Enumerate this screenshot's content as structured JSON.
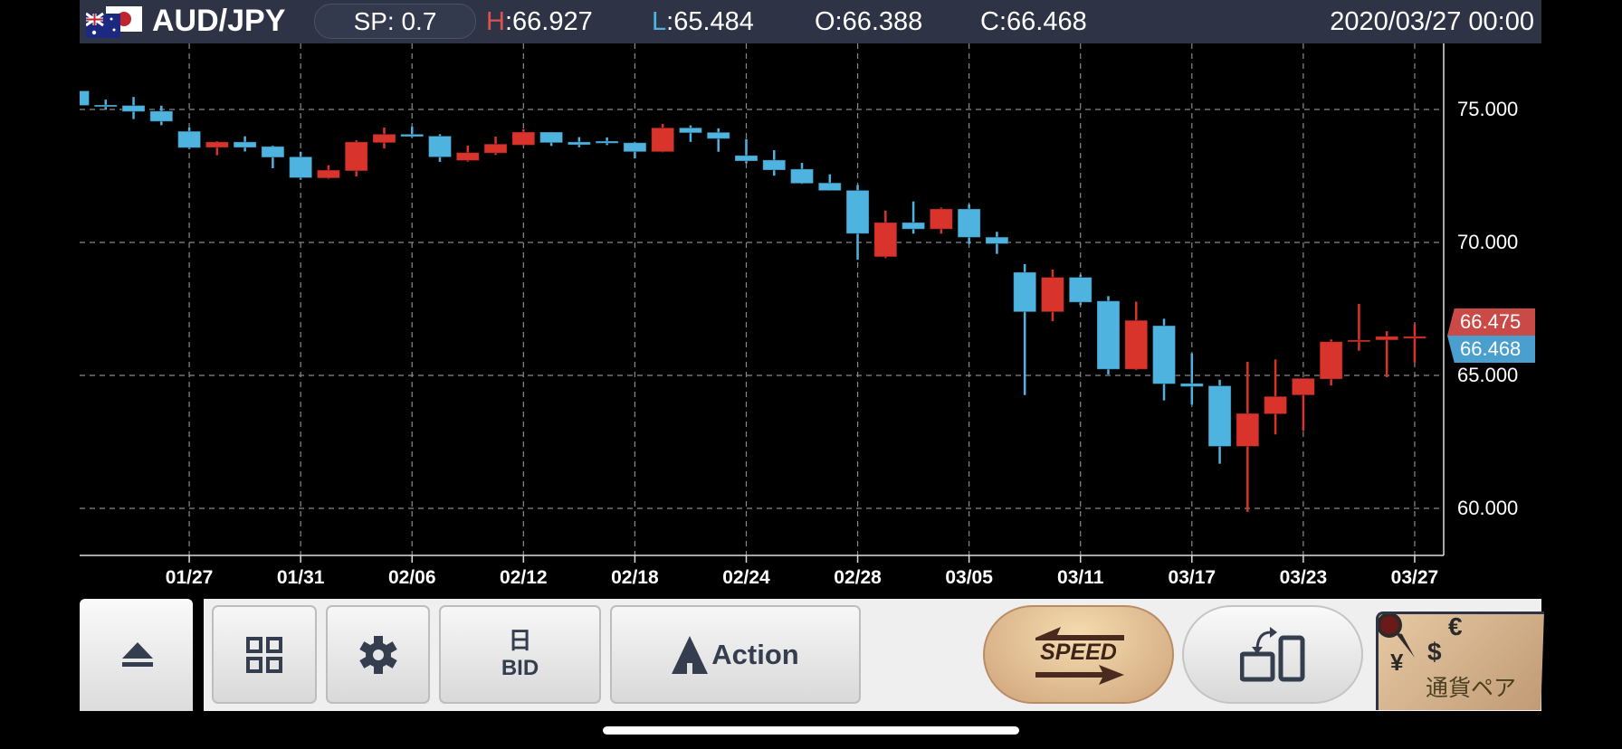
{
  "header": {
    "pair": "AUD/JPY",
    "flag_icon": "aud-jpy-flags-icon",
    "spread": "SP: 0.7",
    "high_label": "H",
    "high": ":66.927",
    "low_label": "L",
    "low": ":65.484",
    "open": "O:66.388",
    "close": "C:66.468",
    "datetime": "2020/03/27 00:00"
  },
  "price_tags": {
    "ask": "66.475",
    "bid": "66.468",
    "ask_color": "#c94a46",
    "bid_color": "#4a9fcf"
  },
  "chart_data": {
    "type": "candlestick",
    "up_color": "#d8342c",
    "down_color": "#4fb3e0",
    "grid": true,
    "ylim": [
      58.4,
      76.5
    ],
    "y_ticks": [
      "75.000",
      "70.000",
      "65.000",
      "60.000"
    ],
    "y_tick_values": [
      75,
      70,
      65,
      60
    ],
    "x_ticks": [
      "01/27",
      "01/31",
      "02/06",
      "02/12",
      "02/18",
      "02/24",
      "02/28",
      "03/05",
      "03/11",
      "03/17",
      "03/23",
      "03/27"
    ],
    "dates": [
      "01/21",
      "01/22",
      "01/23",
      "01/24",
      "01/27",
      "01/28",
      "01/29",
      "01/30",
      "01/31",
      "02/03",
      "02/04",
      "02/05",
      "02/06",
      "02/07",
      "02/10",
      "02/11",
      "02/12",
      "02/13",
      "02/14",
      "02/17",
      "02/18",
      "02/19",
      "02/20",
      "02/21",
      "02/24",
      "02/25",
      "02/26",
      "02/27",
      "02/28",
      "03/02",
      "03/03",
      "03/04",
      "03/05",
      "03/06",
      "03/09",
      "03/10",
      "03/11",
      "03/12",
      "03/13",
      "03/16",
      "03/17",
      "03/18",
      "03/19",
      "03/20",
      "03/23",
      "03/24",
      "03/25",
      "03/26",
      "03/27"
    ],
    "ohlc": [
      [
        75.7,
        75.75,
        75.1,
        75.15
      ],
      [
        75.17,
        75.37,
        74.99,
        75.13
      ],
      [
        75.15,
        75.47,
        74.64,
        74.92
      ],
      [
        74.94,
        75.14,
        74.41,
        74.55
      ],
      [
        74.18,
        74.32,
        73.51,
        73.56
      ],
      [
        73.57,
        73.81,
        73.28,
        73.78
      ],
      [
        73.78,
        73.99,
        73.42,
        73.57
      ],
      [
        73.61,
        73.64,
        72.79,
        73.2
      ],
      [
        73.22,
        73.41,
        72.36,
        72.43
      ],
      [
        72.42,
        72.9,
        72.39,
        72.72
      ],
      [
        72.69,
        73.84,
        72.48,
        73.78
      ],
      [
        73.75,
        74.32,
        73.53,
        74.07
      ],
      [
        74.07,
        74.35,
        73.95,
        73.98
      ],
      [
        74.0,
        74.07,
        73.03,
        73.21
      ],
      [
        73.08,
        73.64,
        73.04,
        73.38
      ],
      [
        73.36,
        73.98,
        73.29,
        73.7
      ],
      [
        73.66,
        74.26,
        73.64,
        74.15
      ],
      [
        74.15,
        74.15,
        73.63,
        73.75
      ],
      [
        73.78,
        73.96,
        73.58,
        73.67
      ],
      [
        73.81,
        73.95,
        73.66,
        73.73
      ],
      [
        73.75,
        73.78,
        73.16,
        73.41
      ],
      [
        73.41,
        74.46,
        73.39,
        74.31
      ],
      [
        74.31,
        74.4,
        73.78,
        74.12
      ],
      [
        74.14,
        74.29,
        73.41,
        73.9
      ],
      [
        73.27,
        73.89,
        72.98,
        73.06
      ],
      [
        73.1,
        73.47,
        72.51,
        72.72
      ],
      [
        72.76,
        72.99,
        72.2,
        72.22
      ],
      [
        72.24,
        72.56,
        71.95,
        71.95
      ],
      [
        71.96,
        72.16,
        69.35,
        70.33
      ],
      [
        69.46,
        71.2,
        69.41,
        70.75
      ],
      [
        70.75,
        71.54,
        70.33,
        70.5
      ],
      [
        70.5,
        71.31,
        70.33,
        71.26
      ],
      [
        71.26,
        71.43,
        69.94,
        70.19
      ],
      [
        70.2,
        70.4,
        69.57,
        69.95
      ],
      [
        68.88,
        69.19,
        64.26,
        67.39
      ],
      [
        67.39,
        68.98,
        67.04,
        68.69
      ],
      [
        68.69,
        68.79,
        67.64,
        67.75
      ],
      [
        67.8,
        67.98,
        65.04,
        65.23
      ],
      [
        65.23,
        67.77,
        65.2,
        67.07
      ],
      [
        66.87,
        67.13,
        64.06,
        64.68
      ],
      [
        64.7,
        65.83,
        63.9,
        64.58
      ],
      [
        64.61,
        64.84,
        61.68,
        62.33
      ],
      [
        62.33,
        65.51,
        59.87,
        63.57
      ],
      [
        63.55,
        65.6,
        62.78,
        64.21
      ],
      [
        64.26,
        64.89,
        62.91,
        64.89
      ],
      [
        64.86,
        66.35,
        64.62,
        66.27
      ],
      [
        66.28,
        67.69,
        65.93,
        66.33
      ],
      [
        66.33,
        66.66,
        64.93,
        66.47
      ],
      [
        66.388,
        66.927,
        65.484,
        66.468
      ]
    ]
  },
  "toolbar": {
    "eject_icon": "eject-icon",
    "layout_icon": "grid-icon",
    "settings_icon": "gear-icon",
    "period": "日",
    "price_type": "BID",
    "action": "Action",
    "speed": "SPEED",
    "rotate_icon": "rotate-device-icon",
    "currency_pair": "通貨ペア",
    "currency_symbols": [
      "€",
      "$",
      "¥"
    ]
  }
}
